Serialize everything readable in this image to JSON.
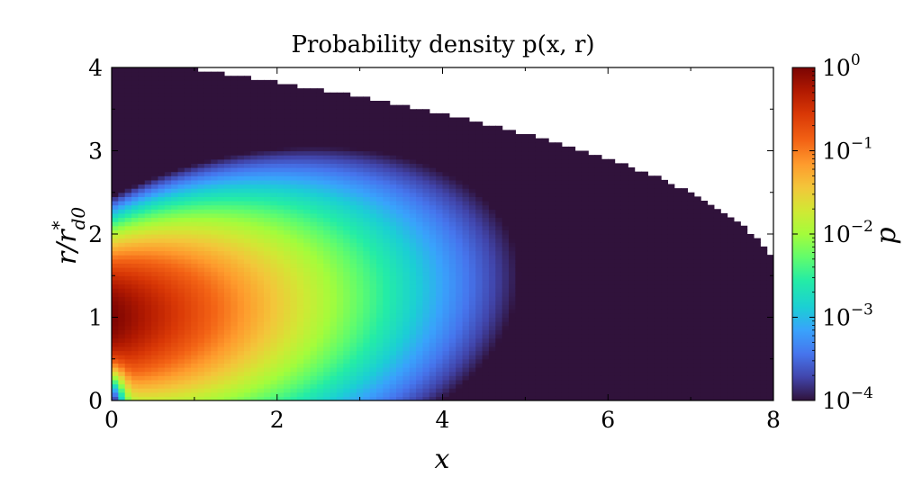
{
  "chart_data": {
    "type": "heatmap",
    "title": "Probability density p(x, r)",
    "xlabel": "x",
    "ylabel": "r/r*d0",
    "xlim": [
      0,
      8
    ],
    "ylim": [
      0,
      4
    ],
    "x_ticks": [
      "0",
      "2",
      "4",
      "6",
      "8"
    ],
    "y_ticks": [
      "0",
      "1",
      "2",
      "3",
      "4"
    ],
    "colorbar": {
      "label": "p",
      "scale": "log",
      "range": [
        0.0001,
        1
      ],
      "ticks": [
        {
          "base": "10",
          "exp": "0"
        },
        {
          "base": "10",
          "exp": "−1"
        },
        {
          "base": "10",
          "exp": "−2"
        },
        {
          "base": "10",
          "exp": "−3"
        },
        {
          "base": "10",
          "exp": "−4"
        }
      ],
      "colormap": "turbo"
    },
    "domain_upper_boundary": {
      "x": [
        0,
        1,
        2,
        3,
        4,
        5,
        6,
        6.5,
        7,
        7.5,
        7.8,
        8
      ],
      "r": [
        4,
        3.98,
        3.82,
        3.65,
        3.45,
        3.2,
        2.9,
        2.72,
        2.5,
        2.2,
        1.95,
        1.72
      ]
    },
    "peak": {
      "x": 0.3,
      "r": 1.0,
      "p": 1
    }
  }
}
